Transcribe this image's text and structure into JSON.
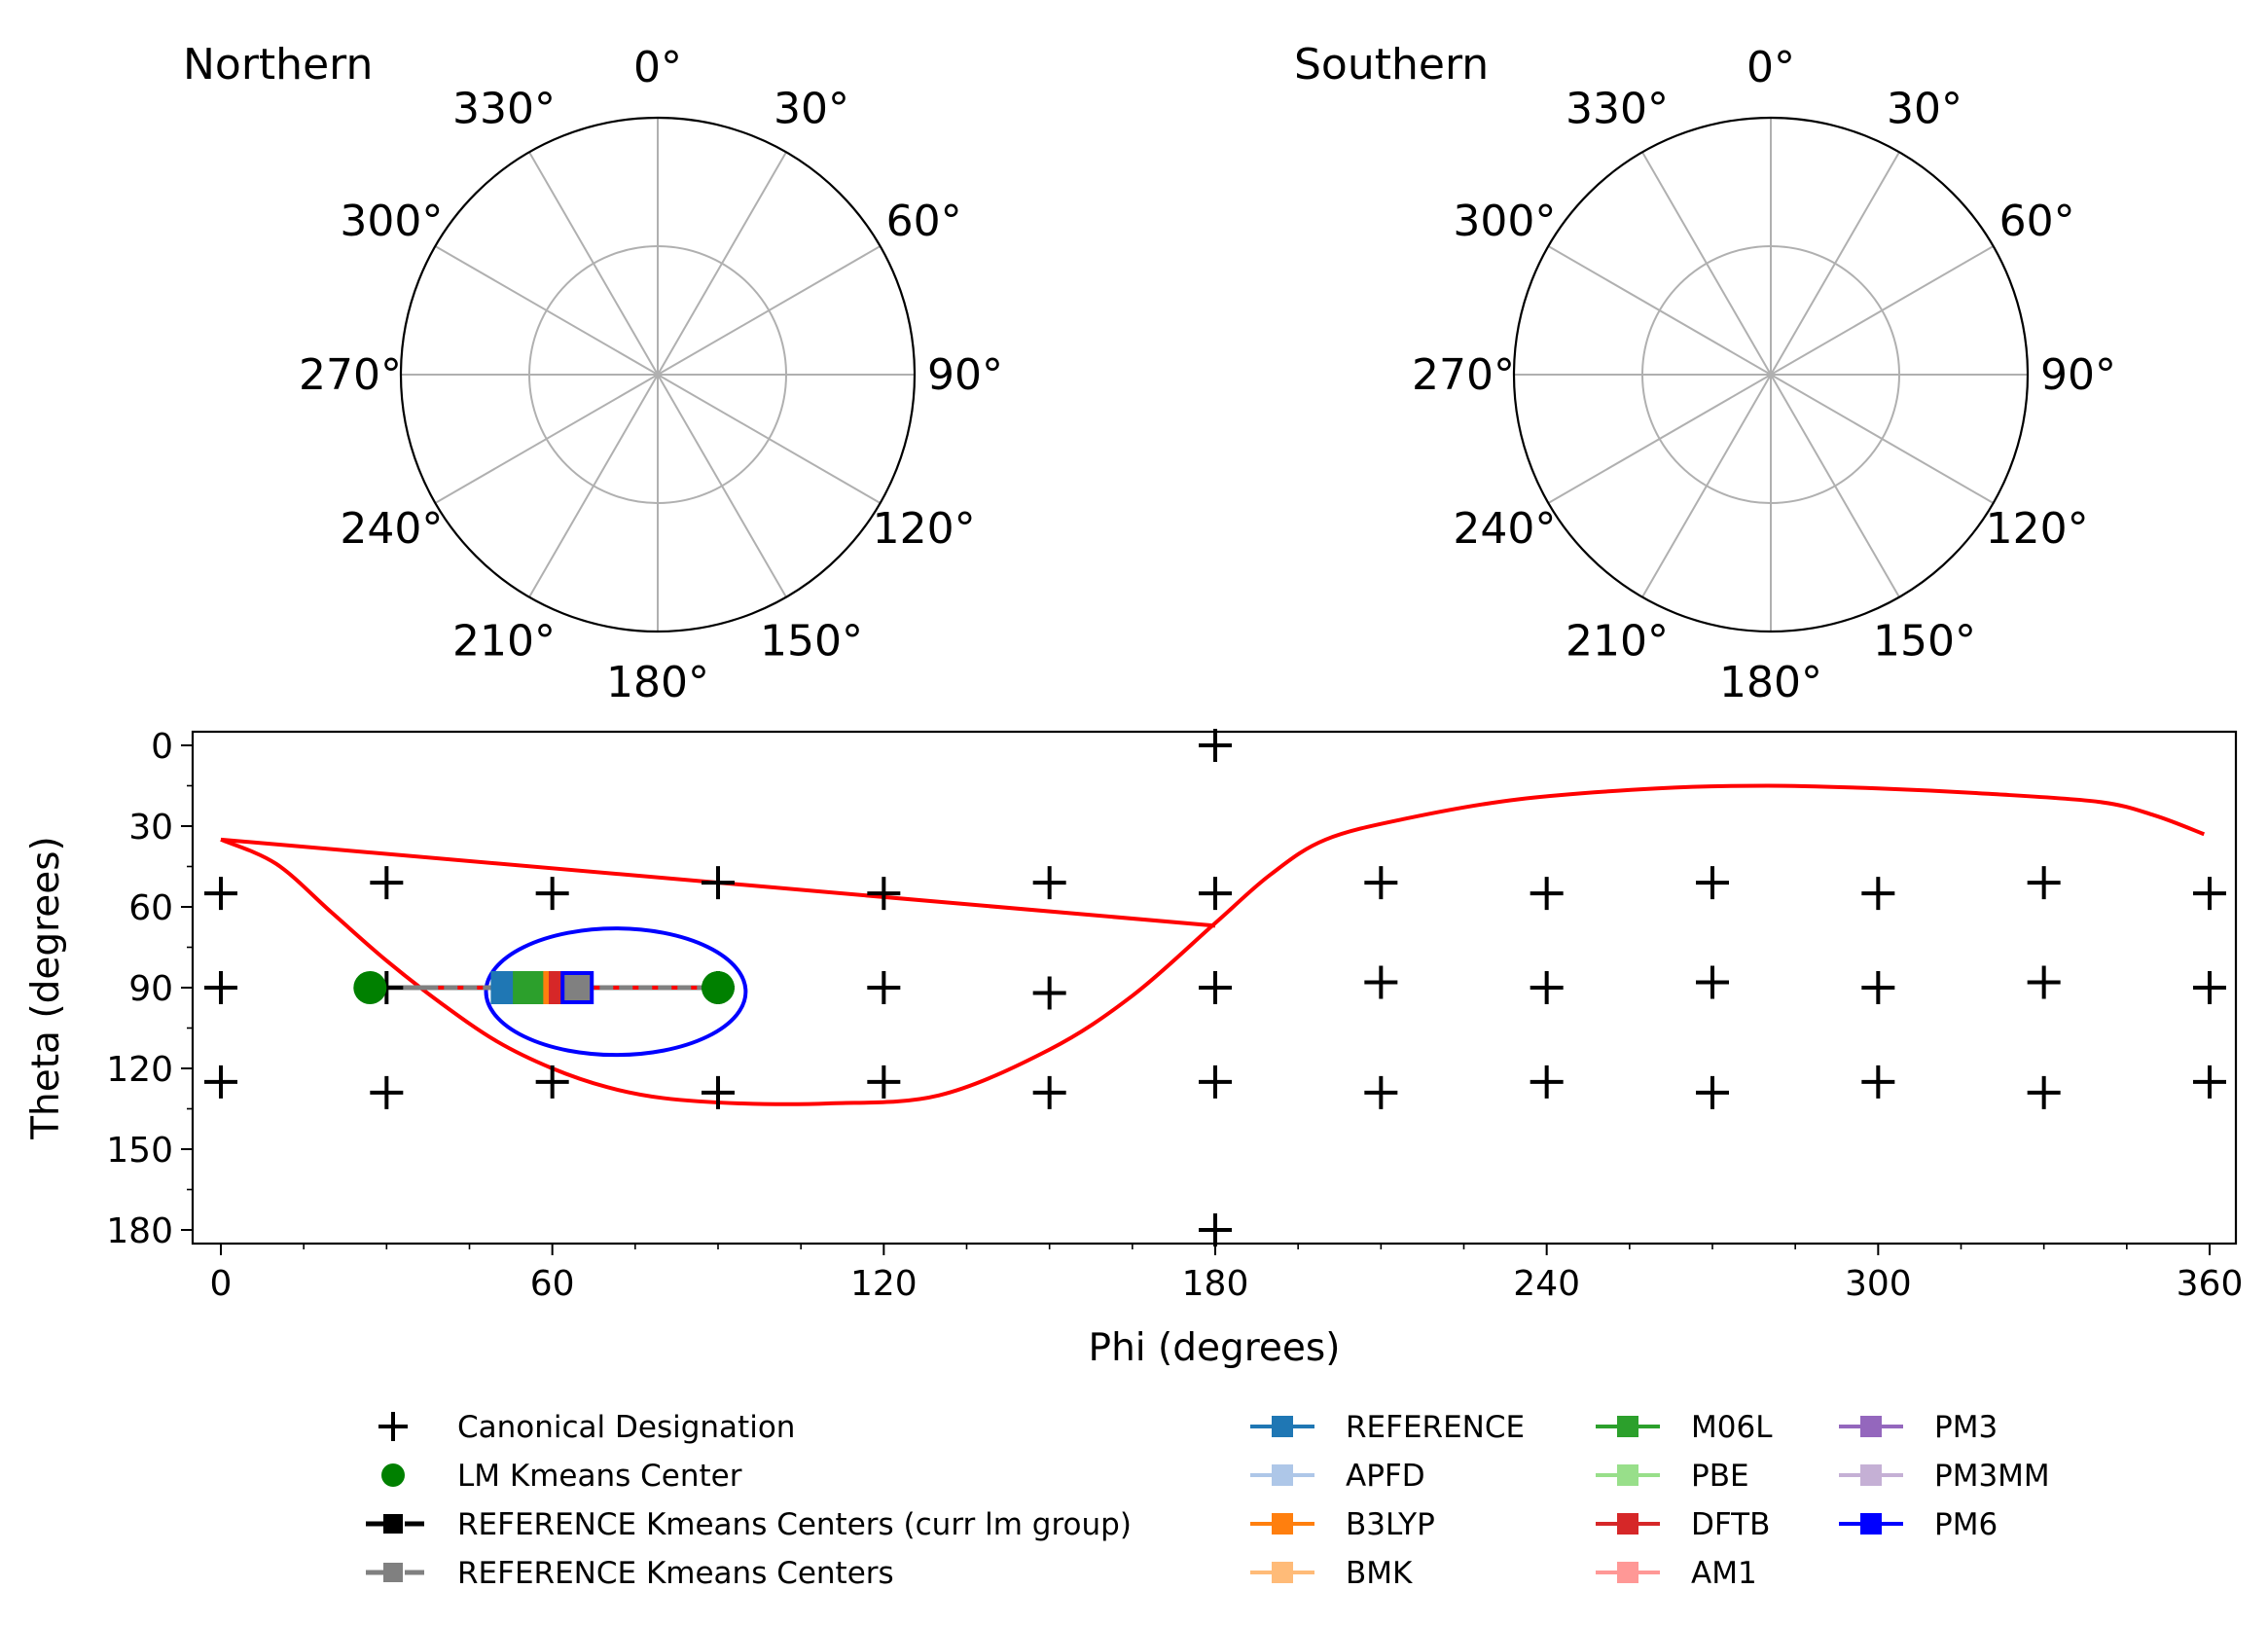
{
  "chart_data": [
    {
      "type": "polar",
      "title": "Northern",
      "angle_ticks": [
        "0°",
        "30°",
        "60°",
        "90°",
        "120°",
        "150°",
        "180°",
        "210°",
        "240°",
        "270°",
        "300°",
        "330°"
      ],
      "direction": "clockwise",
      "zero_location": "top",
      "grid": true,
      "series": []
    },
    {
      "type": "polar",
      "title": "Southern",
      "angle_ticks": [
        "0°",
        "30°",
        "60°",
        "90°",
        "120°",
        "150°",
        "180°",
        "210°",
        "240°",
        "270°",
        "300°",
        "330°"
      ],
      "direction": "clockwise",
      "zero_location": "top",
      "grid": true,
      "series": []
    },
    {
      "type": "scatter",
      "xlabel": "Phi (degrees)",
      "ylabel": "Theta (degrees)",
      "xlim": [
        -4,
        364
      ],
      "ylim": [
        184,
        -5
      ],
      "y_inverted": true,
      "xticks": [
        0,
        60,
        120,
        180,
        240,
        300,
        360
      ],
      "yticks": [
        0,
        30,
        60,
        90,
        120,
        150,
        180
      ],
      "legend_position": "bottom",
      "canonical": [
        [
          180,
          0
        ],
        [
          0,
          55
        ],
        [
          30,
          51
        ],
        [
          60,
          55
        ],
        [
          90,
          51
        ],
        [
          120,
          55
        ],
        [
          150,
          51
        ],
        [
          180,
          55
        ],
        [
          210,
          51
        ],
        [
          240,
          55
        ],
        [
          270,
          51
        ],
        [
          300,
          55
        ],
        [
          330,
          51
        ],
        [
          360,
          55
        ],
        [
          0,
          90
        ],
        [
          30,
          90
        ],
        [
          60,
          90
        ],
        [
          90,
          90
        ],
        [
          120,
          90
        ],
        [
          150,
          92
        ],
        [
          180,
          90
        ],
        [
          210,
          88
        ],
        [
          240,
          90
        ],
        [
          270,
          88
        ],
        [
          300,
          90
        ],
        [
          330,
          88
        ],
        [
          360,
          90
        ],
        [
          0,
          125
        ],
        [
          30,
          129
        ],
        [
          60,
          125
        ],
        [
          90,
          129
        ],
        [
          120,
          125
        ],
        [
          150,
          129
        ],
        [
          180,
          125
        ],
        [
          210,
          129
        ],
        [
          240,
          125
        ],
        [
          270,
          129
        ],
        [
          300,
          125
        ],
        [
          330,
          129
        ],
        [
          360,
          125
        ],
        [
          180,
          180
        ]
      ],
      "lm_kmeans_centers": [
        [
          27,
          90
        ],
        [
          90,
          90
        ]
      ],
      "red_path": [
        [
          0,
          35
        ],
        [
          10,
          44
        ],
        [
          20,
          62
        ],
        [
          30,
          80
        ],
        [
          40,
          96
        ],
        [
          50,
          110
        ],
        [
          60,
          120
        ],
        [
          70,
          127
        ],
        [
          80,
          131
        ],
        [
          94,
          133
        ],
        [
          110,
          133
        ],
        [
          130,
          130
        ],
        [
          150,
          113
        ],
        [
          165,
          93
        ],
        [
          180,
          66
        ],
        [
          190,
          48
        ],
        [
          200,
          35
        ],
        [
          215,
          27
        ],
        [
          235,
          20
        ],
        [
          260,
          16
        ],
        [
          280,
          15
        ],
        [
          300,
          16
        ],
        [
          320,
          18
        ],
        [
          340,
          21
        ],
        [
          350,
          26
        ],
        [
          359,
          33
        ]
      ],
      "red_chord": [
        [
          0,
          35
        ],
        [
          180,
          67
        ]
      ],
      "blue_ellipse": {
        "center": [
          71.5,
          91.5
        ],
        "radius_phi": 23.5,
        "radius_theta": 23.5
      },
      "connector_line": {
        "from": [
          27,
          90
        ],
        "to": [
          90,
          90
        ]
      },
      "cluster_markers": [
        {
          "name": "REFERENCE",
          "phi": 51.5,
          "theta": 90,
          "color": "#1f77b4"
        },
        {
          "name": "M06L",
          "phi": 55.5,
          "theta": 90,
          "color": "#2ca02c"
        },
        {
          "name": "M06L",
          "phi": 57,
          "theta": 90,
          "color": "#2ca02c"
        },
        {
          "name": "B3LYP",
          "phi": 61,
          "theta": 90,
          "color": "#ff7f0e"
        },
        {
          "name": "DFTB",
          "phi": 62,
          "theta": 90,
          "color": "#d62728"
        },
        {
          "name": "PM6",
          "phi": 64.5,
          "theta": 90,
          "color": "#0000ff"
        }
      ],
      "legend": {
        "left": [
          {
            "label": "Canonical Designation",
            "marker": "plus",
            "color": "#000000"
          },
          {
            "label": "LM Kmeans Center",
            "marker": "circle",
            "color": "#008000"
          },
          {
            "label": "REFERENCE Kmeans Centers (curr lm group)",
            "marker": "square-dashdot",
            "color": "#000000"
          },
          {
            "label": "REFERENCE Kmeans Centers",
            "marker": "square-dashdot",
            "color": "#808080"
          }
        ],
        "methods": [
          {
            "label": "REFERENCE",
            "color": "#1f77b4"
          },
          {
            "label": "APFD",
            "color": "#aec7e8"
          },
          {
            "label": "B3LYP",
            "color": "#ff7f0e"
          },
          {
            "label": "BMK",
            "color": "#ffbb78"
          },
          {
            "label": "M06L",
            "color": "#2ca02c"
          },
          {
            "label": "PBE",
            "color": "#98df8a"
          },
          {
            "label": "DFTB",
            "color": "#d62728"
          },
          {
            "label": "AM1",
            "color": "#ff9896"
          },
          {
            "label": "PM3",
            "color": "#9467bd"
          },
          {
            "label": "PM3MM",
            "color": "#c5b0d5"
          },
          {
            "label": "PM6",
            "color": "#0000ff"
          }
        ]
      }
    }
  ]
}
